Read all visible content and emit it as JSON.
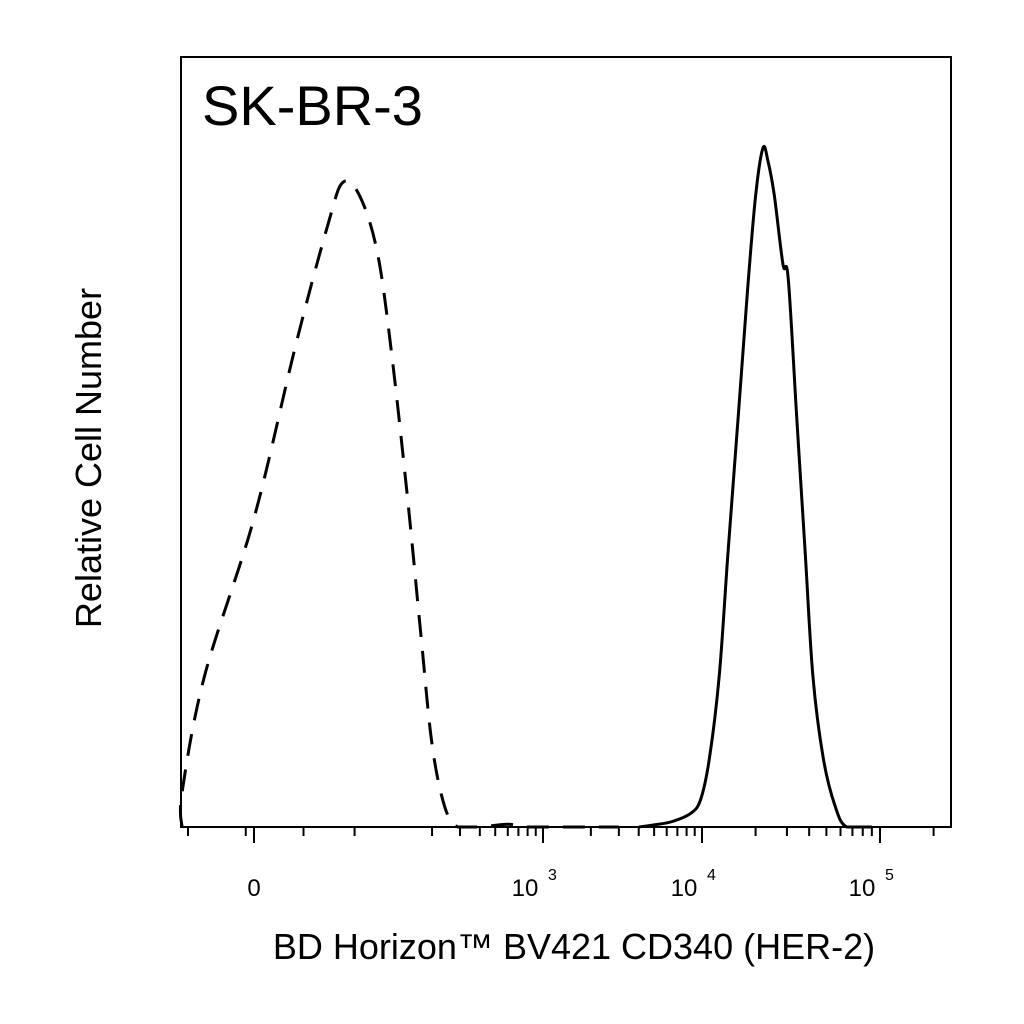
{
  "chart_data": {
    "type": "line",
    "title": "SK-BR-3",
    "xlabel": "BD Horizon™ BV421 CD340 (HER-2)",
    "ylabel": "Relative Cell Number",
    "x_scale": "biexponential",
    "xlim": [
      -300,
      200000
    ],
    "ylim": [
      0,
      100
    ],
    "grid": false,
    "legend": "none",
    "x_ticks": [
      {
        "value": 0,
        "base": "0",
        "exp": ""
      },
      {
        "value": 1000,
        "base": "10",
        "exp": "3"
      },
      {
        "value": 10000,
        "base": "10",
        "exp": "4"
      },
      {
        "value": 100000,
        "base": "10",
        "exp": "5"
      }
    ],
    "series": [
      {
        "style": "dashed",
        "color": "#000000",
        "points": [
          [
            -150,
            0
          ],
          [
            -80,
            5
          ],
          [
            -30,
            22
          ],
          [
            0,
            45
          ],
          [
            25,
            70
          ],
          [
            45,
            88
          ],
          [
            55,
            94
          ],
          [
            70,
            92
          ],
          [
            90,
            84
          ],
          [
            110,
            70
          ],
          [
            140,
            48
          ],
          [
            170,
            28
          ],
          [
            200,
            12
          ],
          [
            240,
            3
          ],
          [
            290,
            0
          ],
          [
            400,
            0
          ],
          [
            600,
            0.4
          ],
          [
            800,
            0
          ],
          [
            1500,
            0
          ],
          [
            3000,
            0
          ]
        ]
      },
      {
        "style": "solid",
        "color": "#000000",
        "points": [
          [
            4000,
            0
          ],
          [
            5000,
            0.3
          ],
          [
            6500,
            0.8
          ],
          [
            8500,
            2
          ],
          [
            9800,
            4
          ],
          [
            11000,
            10
          ],
          [
            12500,
            22
          ],
          [
            14000,
            40
          ],
          [
            16000,
            60
          ],
          [
            18000,
            78
          ],
          [
            20000,
            92
          ],
          [
            22000,
            99
          ],
          [
            23500,
            97
          ],
          [
            25500,
            92
          ],
          [
            28500,
            82
          ],
          [
            30500,
            80
          ],
          [
            34000,
            60
          ],
          [
            38000,
            40
          ],
          [
            42000,
            22
          ],
          [
            48000,
            10
          ],
          [
            56000,
            3
          ],
          [
            65000,
            0
          ],
          [
            90000,
            0
          ]
        ]
      }
    ]
  }
}
